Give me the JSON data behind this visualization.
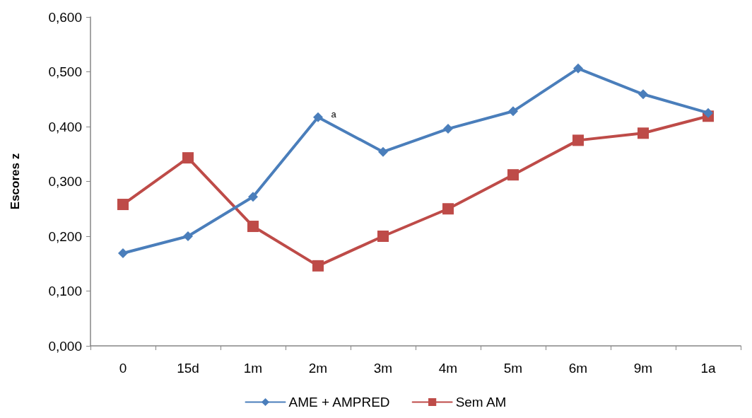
{
  "chart_data": {
    "type": "line",
    "ylabel": "Escores z",
    "categories": [
      "0",
      "15d",
      "1m",
      "2m",
      "3m",
      "4m",
      "5m",
      "6m",
      "9m",
      "1a"
    ],
    "series": [
      {
        "name": "AME + AMPRED",
        "color": "#4a7ebb",
        "marker": "diamond",
        "values": [
          0.169,
          0.2,
          0.272,
          0.417,
          0.354,
          0.396,
          0.428,
          0.506,
          0.459,
          0.425
        ]
      },
      {
        "name": "Sem AM",
        "color": "#be4b48",
        "marker": "square",
        "values": [
          0.258,
          0.343,
          0.218,
          0.146,
          0.2,
          0.25,
          0.312,
          0.375,
          0.388,
          0.419
        ]
      }
    ],
    "ylim": [
      0,
      0.6
    ],
    "yticks": [
      {
        "value": 0,
        "label": "0,000"
      },
      {
        "value": 0.1,
        "label": "0,100"
      },
      {
        "value": 0.2,
        "label": "0,200"
      },
      {
        "value": 0.3,
        "label": "0,300"
      },
      {
        "value": 0.4,
        "label": "0,400"
      },
      {
        "value": 0.5,
        "label": "0,500"
      },
      {
        "value": 0.6,
        "label": "0,600"
      }
    ],
    "annotations": [
      {
        "text": "a",
        "x": "2m",
        "y": 0.417
      }
    ],
    "grid": false,
    "legend": "bottom",
    "line_style": "solid"
  }
}
